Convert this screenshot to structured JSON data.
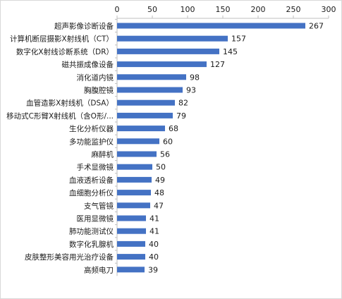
{
  "chart_data": {
    "type": "bar",
    "orientation": "horizontal",
    "title": "",
    "xlabel": "",
    "ylabel": "",
    "xlim": [
      0,
      300
    ],
    "ticks": [
      0,
      50,
      100,
      150,
      200,
      250,
      300
    ],
    "tick_position": "top",
    "grid": false,
    "legend": "none",
    "bar_color": "#4472C4",
    "categories": [
      "超声影像诊断设备",
      "计算机断层摄影X射线机（CT）",
      "数字化X射线诊断系统（DR）",
      "磁共振成像设备",
      "消化道内镜",
      "胸腹腔镜",
      "血管造影X射线机（DSA）",
      "移动式C形臂X射线机（含O形/...",
      "生化分析仪器",
      "多功能监护仪",
      "麻醉机",
      "手术显微镜",
      "血液透析设备",
      "血细胞分析仪",
      "支气管镜",
      "医用显微镜",
      "肺功能测试仪",
      "数字化乳腺机",
      "皮肤整形美容用光治疗设备",
      "高频电刀"
    ],
    "values": [
      267,
      157,
      145,
      127,
      98,
      93,
      82,
      79,
      68,
      60,
      56,
      50,
      49,
      48,
      47,
      41,
      41,
      40,
      40,
      39
    ]
  }
}
